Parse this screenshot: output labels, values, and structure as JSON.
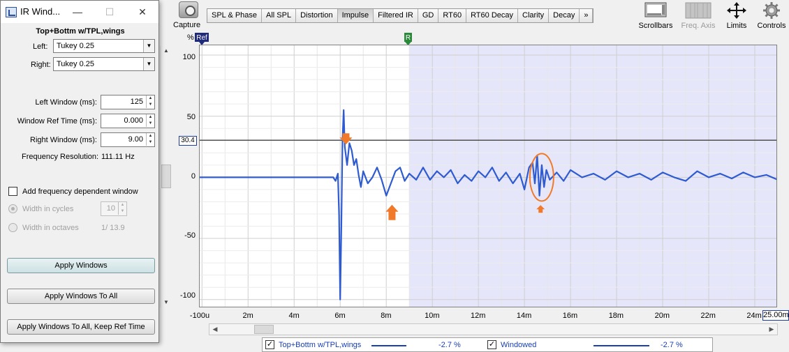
{
  "dialog": {
    "title": "IR Wind...",
    "measurement_name": "Top+Bottm w/TPL,wings",
    "left_label": "Left:",
    "left_value": "Tukey 0.25",
    "right_label": "Right:",
    "right_value": "Tukey 0.25",
    "left_window_label": "Left Window (ms):",
    "left_window_value": "125",
    "ref_time_label": "Window Ref Time (ms):",
    "ref_time_value": "0.000",
    "right_window_label": "Right Window (ms):",
    "right_window_value": "9.00",
    "freq_res_label": "Frequency Resolution:",
    "freq_res_value": "111.11 Hz",
    "freq_dep_label": "Add frequency dependent window",
    "width_cycles_label": "Width in cycles",
    "width_cycles_value": "10",
    "width_octaves_label": "Width in octaves",
    "width_octaves_value": "1/ 13.9",
    "apply_label": "Apply Windows",
    "apply_all_label": "Apply Windows To All",
    "apply_all_keep_label": "Apply Windows To All, Keep Ref Time"
  },
  "toolbar": {
    "capture_label": "Capture",
    "tabs": [
      "SPL & Phase",
      "All SPL",
      "Distortion",
      "Impulse",
      "Filtered IR",
      "GD",
      "RT60",
      "RT60 Decay",
      "Clarity",
      "Decay",
      "»"
    ],
    "active_tab": "Impulse",
    "scrollbars_label": "Scrollbars",
    "freq_axis_label": "Freq. Axis",
    "limits_label": "Limits",
    "controls_label": "Controls"
  },
  "plot": {
    "y_unit": "%",
    "ref_marker": "Ref",
    "r_marker": "R",
    "ref_level_value": "30.4",
    "x_end_value": "25.00m",
    "y_ticks": [
      "100",
      "50",
      "0",
      "-50",
      "-100"
    ],
    "x_ticks": [
      "-100u",
      "2m",
      "4m",
      "6m",
      "8m",
      "10m",
      "12m",
      "14m",
      "16m",
      "18m",
      "20m",
      "22m",
      "24m"
    ]
  },
  "legend": {
    "items": [
      {
        "name": "Top+Bottm w/TPL,wings",
        "value": "-2.7 %",
        "checked": true
      },
      {
        "name": "Windowed",
        "value": "-2.7 %",
        "checked": true
      }
    ]
  },
  "colors": {
    "trace": "#2f5bd0",
    "window_shade": "#e6e6fa",
    "annotation": "#f07a2a",
    "marker_ref": "#1f2b7a",
    "marker_r": "#2a8a3a"
  },
  "chart_data": {
    "type": "line",
    "title": "",
    "xlabel": "",
    "ylabel": "%",
    "xlim": [
      -0.1,
      25.0
    ],
    "ylim": [
      -107,
      108
    ],
    "window_start_ms": 9.0,
    "series": [
      {
        "name": "Top+Bottm w/TPL,wings",
        "x": [
          -0.1,
          5.5,
          5.7,
          5.8,
          5.9,
          5.95,
          6.0,
          6.05,
          6.1,
          6.15,
          6.2,
          6.3,
          6.4,
          6.5,
          6.6,
          6.7,
          6.8,
          6.9,
          7.0,
          7.2,
          7.4,
          7.6,
          7.8,
          8.0,
          8.2,
          8.4,
          8.6,
          8.8,
          9.0,
          9.3,
          9.6,
          9.9,
          10.2,
          10.5,
          10.8,
          11.1,
          11.4,
          11.7,
          12.0,
          12.3,
          12.6,
          12.9,
          13.2,
          13.5,
          13.8,
          14.0,
          14.2,
          14.35,
          14.45,
          14.55,
          14.65,
          14.75,
          14.85,
          14.95,
          15.1,
          15.4,
          15.7,
          16.0,
          16.5,
          17.0,
          17.5,
          18.0,
          18.5,
          19.0,
          19.5,
          20.0,
          20.5,
          21.0,
          21.5,
          22.0,
          22.5,
          23.0,
          23.5,
          24.0,
          24.5,
          25.0
        ],
        "y": [
          0,
          0,
          0,
          -3,
          3,
          -30,
          -100,
          -40,
          30,
          55,
          25,
          10,
          28,
          22,
          10,
          15,
          2,
          -8,
          5,
          -5,
          0,
          8,
          -2,
          -15,
          -5,
          5,
          8,
          -3,
          3,
          -2,
          8,
          -2,
          5,
          0,
          6,
          -5,
          2,
          -3,
          5,
          0,
          8,
          -3,
          4,
          -5,
          3,
          -10,
          8,
          12,
          -5,
          18,
          -15,
          10,
          -8,
          6,
          -2,
          4,
          -3,
          6,
          0,
          3,
          -2,
          5,
          0,
          3,
          -2,
          4,
          0,
          -3,
          5,
          0,
          3,
          -1,
          4,
          0,
          2,
          -2
        ]
      }
    ]
  }
}
